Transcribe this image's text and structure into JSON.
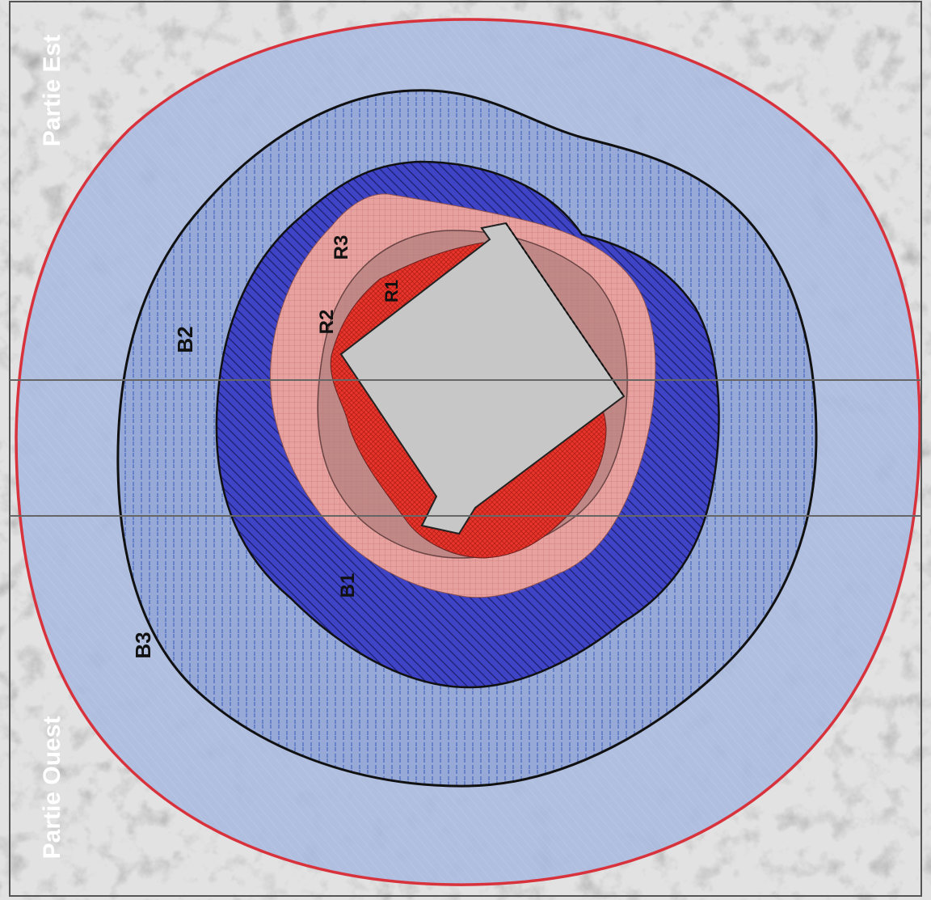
{
  "map": {
    "sides": {
      "east": "Partie Est",
      "west": "Partie Ouest"
    },
    "zones": [
      {
        "id": "B3",
        "label": "B3",
        "fill": "#a7b8dd",
        "outline": "#d8323c"
      },
      {
        "id": "B2",
        "label": "B2",
        "fill": "#8ea3d6",
        "outline": "#111111"
      },
      {
        "id": "B1",
        "label": "B1",
        "fill": "#3a3fc4",
        "outline": "#111111"
      },
      {
        "id": "R3",
        "label": "R3",
        "fill": "#e39a98",
        "outline": "#8a5050"
      },
      {
        "id": "R2",
        "label": "R2",
        "fill": "#b68a88",
        "outline": "#6a4444"
      },
      {
        "id": "R1",
        "label": "R1",
        "fill": "#e5332a",
        "outline": "#6a2020"
      }
    ],
    "site_fill": "#c7c7c7"
  }
}
